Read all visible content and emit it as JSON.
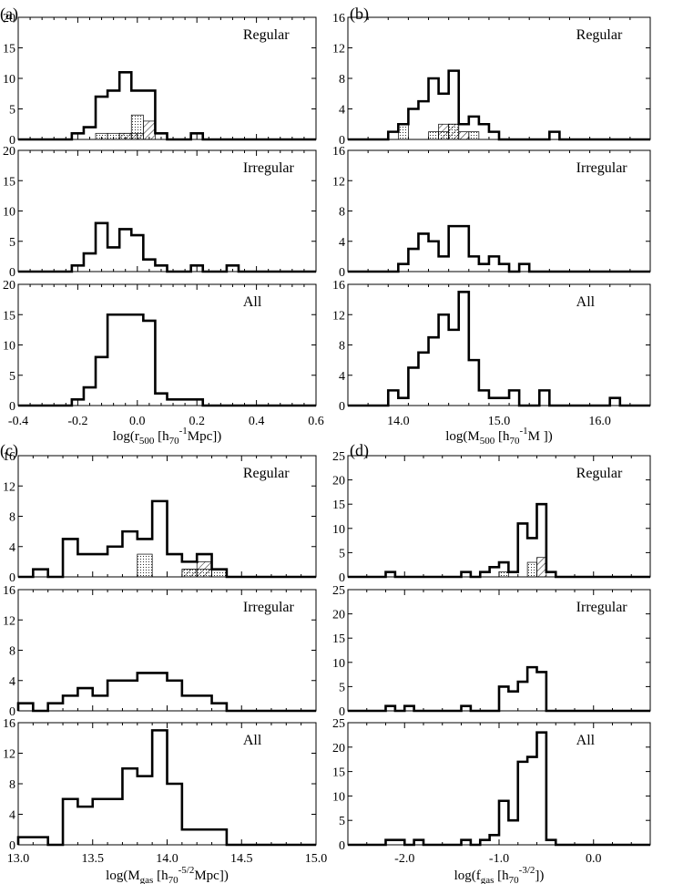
{
  "chart_data": [
    {
      "panel": "(a)",
      "type": "histogram",
      "xlabel": "log(r500 [h70-1Mpc])",
      "xlabel_parts": {
        "pre": "log(r",
        "sub1": "500",
        "mid": " [h",
        "sub2": "70",
        "sup": "-1",
        "post": "Mpc])"
      },
      "xlim": [
        -0.4,
        0.6
      ],
      "xticks": [
        -0.4,
        -0.2,
        0.0,
        0.2,
        0.4,
        0.6
      ],
      "xtick_labels": [
        "-0.4",
        "-0.2",
        "0.0",
        "0.2",
        "0.4",
        "0.6"
      ],
      "ylim": [
        0,
        20
      ],
      "yticks": [
        0,
        5,
        10,
        15,
        20
      ],
      "ytick_labels": [
        "0",
        "5",
        "10",
        "15",
        "20"
      ],
      "bin_edges": [
        -0.22,
        -0.18,
        -0.14,
        -0.1,
        -0.06,
        -0.02,
        0.02,
        0.06,
        0.1,
        0.14,
        0.18,
        0.22,
        0.26,
        0.3,
        0.34,
        0.38,
        0.42,
        0.46,
        0.5
      ],
      "subpanels": [
        {
          "label": "Regular",
          "counts": [
            1,
            2,
            7,
            8,
            11,
            8,
            8,
            1,
            0,
            0,
            1,
            0,
            0,
            0,
            0,
            0,
            0,
            0
          ],
          "hatched_fine": [
            0,
            0,
            1,
            1,
            1,
            4,
            0,
            0,
            0,
            0,
            0,
            0,
            0,
            0,
            0,
            0,
            0,
            0
          ],
          "hatched_diag": [
            0,
            0,
            0,
            0,
            1,
            1,
            3,
            0,
            0,
            0,
            0,
            0,
            0,
            0,
            0,
            0,
            0,
            0
          ]
        },
        {
          "label": "Irregular",
          "counts": [
            1,
            3,
            8,
            4,
            7,
            6,
            2,
            1,
            0,
            0,
            1,
            0,
            0,
            1,
            0,
            0,
            0,
            0
          ]
        },
        {
          "label": "All",
          "counts": [
            1,
            3,
            8,
            15,
            15,
            15,
            14,
            2,
            1,
            1,
            1,
            0,
            0,
            0,
            0,
            0,
            0,
            0
          ]
        }
      ]
    },
    {
      "panel": "(b)",
      "type": "histogram",
      "xlabel": "log(M500 [h70-1M ])",
      "xlabel_parts": {
        "pre": "log(M",
        "sub1": "500",
        "mid": " [h",
        "sub2": "70",
        "sup": "-1",
        "post": "M ])"
      },
      "xlim": [
        13.5,
        16.5
      ],
      "xticks": [
        14.0,
        15.0,
        16.0
      ],
      "xtick_labels": [
        "14.0",
        "15.0",
        "16.0"
      ],
      "ylim": [
        0,
        16
      ],
      "yticks": [
        0,
        4,
        8,
        12,
        16
      ],
      "ytick_labels": [
        "0",
        "4",
        "8",
        "12",
        "16"
      ],
      "bin_edges": [
        13.9,
        14.0,
        14.1,
        14.2,
        14.3,
        14.4,
        14.5,
        14.6,
        14.7,
        14.8,
        14.9,
        15.0,
        15.1,
        15.2,
        15.3,
        15.4,
        15.5,
        15.6,
        15.7,
        15.8,
        15.9,
        16.0,
        16.1,
        16.2,
        16.3
      ],
      "subpanels": [
        {
          "label": "Regular",
          "counts": [
            1,
            2,
            4,
            5,
            8,
            6,
            9,
            2,
            3,
            2,
            1,
            0,
            0,
            0,
            0,
            0,
            1,
            0,
            0,
            0,
            0,
            0,
            0,
            0
          ],
          "hatched_fine": [
            0,
            2,
            0,
            0,
            1,
            1,
            2,
            0,
            1,
            0,
            0,
            0,
            0,
            0,
            0,
            0,
            0,
            0,
            0,
            0,
            0,
            0,
            0,
            0
          ],
          "hatched_diag": [
            0,
            0,
            0,
            0,
            0,
            2,
            2,
            1,
            0,
            0,
            0,
            0,
            0,
            0,
            0,
            0,
            0,
            0,
            0,
            0,
            0,
            0,
            0,
            0
          ]
        },
        {
          "label": "Irregular",
          "counts": [
            0,
            1,
            3,
            5,
            4,
            2,
            6,
            6,
            2,
            1,
            2,
            1,
            0,
            1,
            0,
            0,
            0,
            0,
            0,
            0,
            0,
            0,
            0,
            0
          ]
        },
        {
          "label": "All",
          "counts": [
            2,
            1,
            5,
            7,
            9,
            12,
            10,
            15,
            6,
            2,
            1,
            1,
            2,
            0,
            0,
            2,
            0,
            0,
            0,
            0,
            0,
            0,
            1,
            0
          ]
        }
      ]
    },
    {
      "panel": "(c)",
      "type": "histogram",
      "xlabel": "log(Mgas [h70-5/2Mpc])",
      "xlabel_parts": {
        "pre": "log(M",
        "sub1": "gas",
        "mid": " [h",
        "sub2": "70",
        "sup": "-5/2",
        "post": "Mpc])"
      },
      "xlim": [
        13.0,
        15.0
      ],
      "xticks": [
        13.0,
        13.5,
        14.0,
        14.5,
        15.0
      ],
      "xtick_labels": [
        "13.0",
        "13.5",
        "14.0",
        "14.5",
        "15.0"
      ],
      "ylim": [
        0,
        16
      ],
      "yticks": [
        0,
        4,
        8,
        12,
        16
      ],
      "ytick_labels": [
        "0",
        "4",
        "8",
        "12",
        "16"
      ],
      "bin_edges": [
        13.0,
        13.1,
        13.2,
        13.3,
        13.4,
        13.5,
        13.6,
        13.7,
        13.8,
        13.9,
        14.0,
        14.1,
        14.2,
        14.3,
        14.4,
        14.5,
        14.6
      ],
      "subpanels": [
        {
          "label": "Regular",
          "counts": [
            0,
            1,
            0,
            5,
            3,
            3,
            4,
            6,
            5,
            10,
            3,
            2,
            3,
            1,
            0,
            0
          ],
          "hatched_fine": [
            0,
            0,
            0,
            0,
            0,
            0,
            0,
            0,
            3,
            0,
            0,
            1,
            1,
            1,
            0,
            0
          ],
          "hatched_diag": [
            0,
            0,
            0,
            0,
            0,
            0,
            0,
            0,
            0,
            0,
            0,
            1,
            2,
            0,
            0,
            0
          ]
        },
        {
          "label": "Irregular",
          "counts": [
            1,
            0,
            1,
            2,
            3,
            2,
            4,
            4,
            5,
            5,
            4,
            2,
            2,
            1,
            0,
            0
          ]
        },
        {
          "label": "All",
          "counts": [
            1,
            1,
            0,
            6,
            5,
            6,
            6,
            10,
            9,
            15,
            8,
            2,
            2,
            2,
            0,
            0
          ]
        }
      ]
    },
    {
      "panel": "(d)",
      "type": "histogram",
      "xlabel": "log(fgas [h70-3/2])",
      "xlabel_parts": {
        "pre": "log(f",
        "sub1": "gas",
        "mid": " [h",
        "sub2": "70",
        "sup": "-3/2",
        "post": "])"
      },
      "xlim": [
        -2.6,
        0.6
      ],
      "xticks": [
        -2.0,
        -1.0,
        0.0
      ],
      "xtick_labels": [
        "-2.0",
        "-1.0",
        "0.0"
      ],
      "ylim": [
        0,
        25
      ],
      "yticks": [
        0,
        5,
        10,
        15,
        20,
        25
      ],
      "ytick_labels": [
        "0",
        "5",
        "10",
        "15",
        "20",
        "25"
      ],
      "bin_edges": [
        -2.3,
        -2.2,
        -2.1,
        -2.0,
        -1.9,
        -1.8,
        -1.7,
        -1.6,
        -1.5,
        -1.4,
        -1.3,
        -1.2,
        -1.1,
        -1.0,
        -0.9,
        -0.8,
        -0.7,
        -0.6,
        -0.5,
        -0.4
      ],
      "subpanels": [
        {
          "label": "Regular",
          "counts": [
            0,
            1,
            0,
            0,
            0,
            0,
            0,
            0,
            0,
            1,
            0,
            1,
            2,
            3,
            1,
            11,
            8,
            15,
            1
          ],
          "hatched_fine": [
            0,
            0,
            0,
            0,
            0,
            0,
            0,
            0,
            0,
            0,
            0,
            0,
            0,
            1,
            0,
            0,
            3,
            0,
            0
          ],
          "hatched_diag": [
            0,
            0,
            0,
            0,
            0,
            0,
            0,
            0,
            0,
            0,
            0,
            0,
            0,
            0,
            0,
            0,
            0,
            4,
            0
          ]
        },
        {
          "label": "Irregular",
          "counts": [
            0,
            1,
            0,
            1,
            0,
            0,
            0,
            0,
            0,
            1,
            0,
            0,
            0,
            5,
            4,
            6,
            9,
            8,
            0
          ]
        },
        {
          "label": "All",
          "counts": [
            0,
            1,
            1,
            0,
            1,
            0,
            0,
            0,
            0,
            1,
            0,
            1,
            2,
            9,
            5,
            17,
            18,
            23,
            1
          ]
        }
      ]
    }
  ]
}
